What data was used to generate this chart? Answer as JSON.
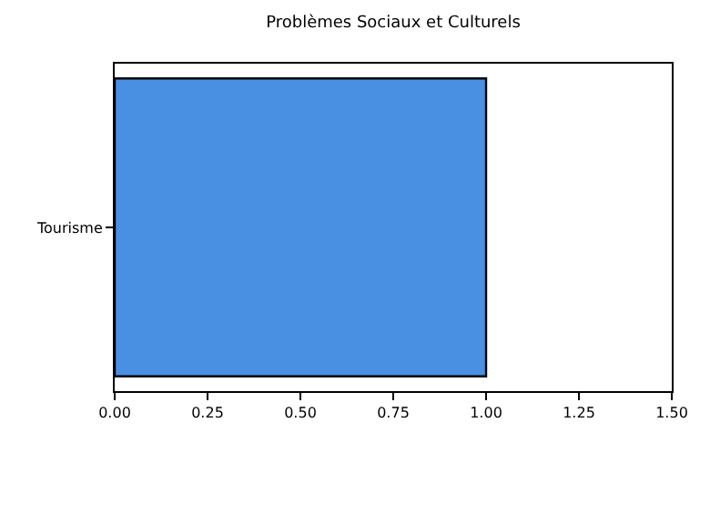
{
  "chart_data": {
    "type": "bar",
    "orientation": "horizontal",
    "title": "Problèmes Sociaux et Culturels",
    "categories": [
      "Tourisme"
    ],
    "values": [
      1.0
    ],
    "color": "#4a90e2",
    "xlim": [
      0,
      1.5
    ],
    "xticks": [
      {
        "value": 0,
        "label": "0.00"
      },
      {
        "value": 0.25,
        "label": "0.25"
      },
      {
        "value": 0.5,
        "label": "0.50"
      },
      {
        "value": 0.75,
        "label": "0.75"
      },
      {
        "value": 1,
        "label": "1.00"
      },
      {
        "value": 1.25,
        "label": "1.25"
      },
      {
        "value": 1.5,
        "label": "1.50"
      }
    ]
  }
}
